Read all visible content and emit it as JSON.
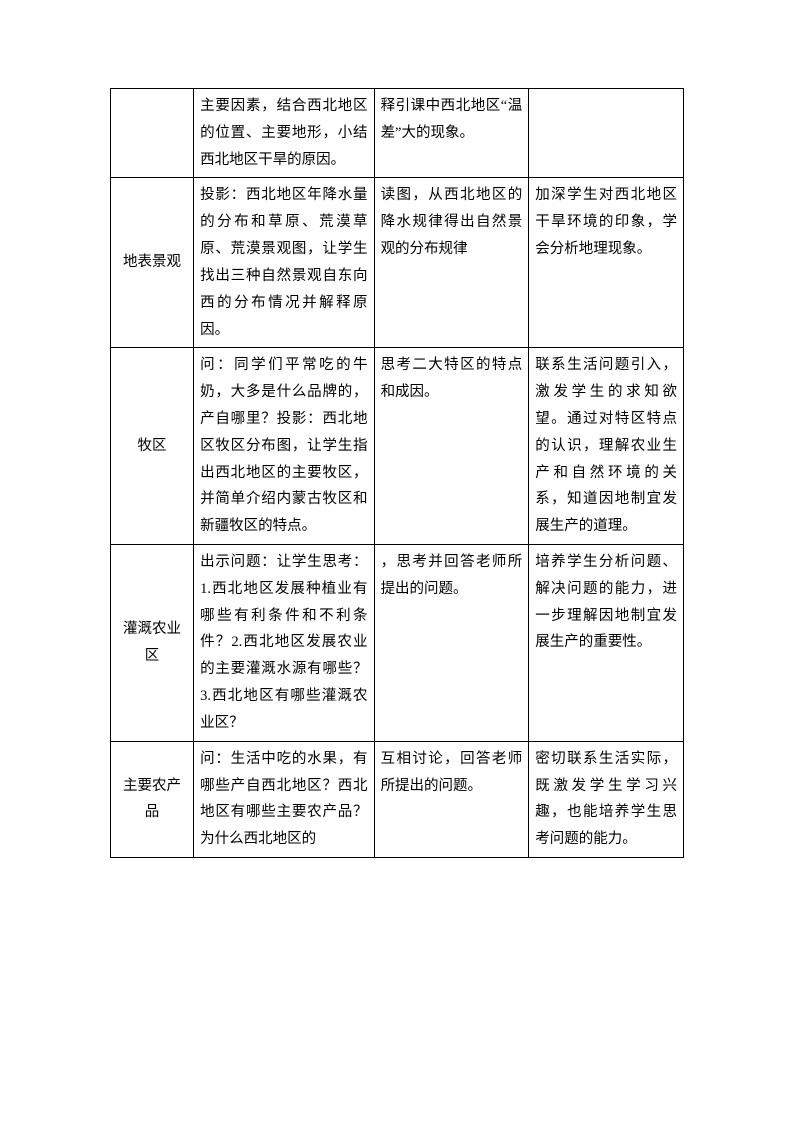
{
  "table": {
    "rows": [
      {
        "label": "",
        "teacher": "主要因素，结合西北地区的位置、主要地形，小结西北地区干旱的原因。",
        "student": "释引课中西北地区“温差”大的现象。",
        "purpose": ""
      },
      {
        "label": "地表景观",
        "teacher": "投影：西北地区年降水量的分布和草原、荒漠草原、荒漠景观图，让学生找出三种自然景观自东向西的分布情况并解释原因。",
        "student": "读图，从西北地区的降水规律得出自然景观的分布规律",
        "purpose": "加深学生对西北地区干旱环境的印象，学会分析地理现象。"
      },
      {
        "label": "牧区",
        "teacher": "问：同学们平常吃的牛奶，大多是什么品牌的，产自哪里？投影：西北地区牧区分布图，让学生指出西北地区的主要牧区，并简单介绍内蒙古牧区和新疆牧区的特点。",
        "student": "思考二大特区的特点和成因。",
        "purpose": "联系生活问题引入，激发学生的求知欲望。通过对特区特点的认识，理解农业生产和自然环境的关系，知道因地制宜发展生产的道理。"
      },
      {
        "label": "灌溉农业区",
        "teacher": "出示问题：让学生思考：1.西北地区发展种植业有哪些有利条件和不利条件？2.西北地区发展农业的主要灌溉水源有哪些？3.西北地区有哪些灌溉农业区？",
        "student": "，思考并回答老师所提出的问题。",
        "purpose": "培养学生分析问题、解决问题的能力，进一步理解因地制宜发展生产的重要性。"
      },
      {
        "label": "主要农产品",
        "teacher": "问：生活中吃的水果，有哪些产自西北地区？西北地区有哪些主要农产品？为什么西北地区的",
        "student": "互相讨论，回答老师所提出的问题。",
        "purpose": "密切联系生活实际，既激发学生学习兴趣，也能培养学生思考问题的能力。"
      }
    ]
  },
  "style": {
    "background_color": "#ffffff",
    "border_color": "#000000",
    "text_color": "#000000",
    "font_size_pt": 11,
    "line_height": 1.85
  }
}
